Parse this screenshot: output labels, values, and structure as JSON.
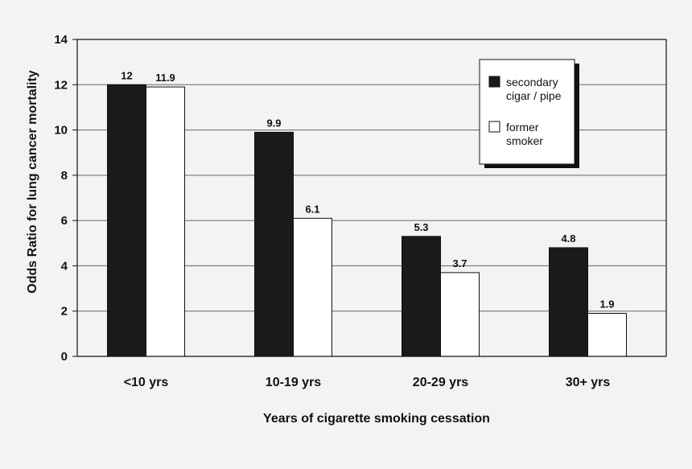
{
  "chart_data": {
    "type": "bar",
    "title": "",
    "xlabel": "Years of cigarette smoking cessation",
    "ylabel": "Odds Ratio for lung cancer mortality",
    "categories": [
      "<10 yrs",
      "10-19 yrs",
      "20-29 yrs",
      "30+ yrs"
    ],
    "series": [
      {
        "legend_lines": [
          "secondary",
          "cigar / pipe"
        ],
        "color": "#1a1a1a",
        "values": [
          12,
          9.9,
          5.3,
          4.8
        ],
        "value_labels": [
          "12",
          "9.9",
          "5.3",
          "4.8"
        ]
      },
      {
        "legend_lines": [
          "former",
          "smoker"
        ],
        "color": "#ffffff",
        "values": [
          11.9,
          6.1,
          3.7,
          1.9
        ],
        "value_labels": [
          "11.9",
          "6.1",
          "3.7",
          "1.9"
        ]
      }
    ],
    "ylim": [
      0,
      14
    ],
    "yticks": [
      0,
      2,
      4,
      6,
      8,
      10,
      12,
      14
    ],
    "grid": true,
    "legend_position": "top-right"
  }
}
